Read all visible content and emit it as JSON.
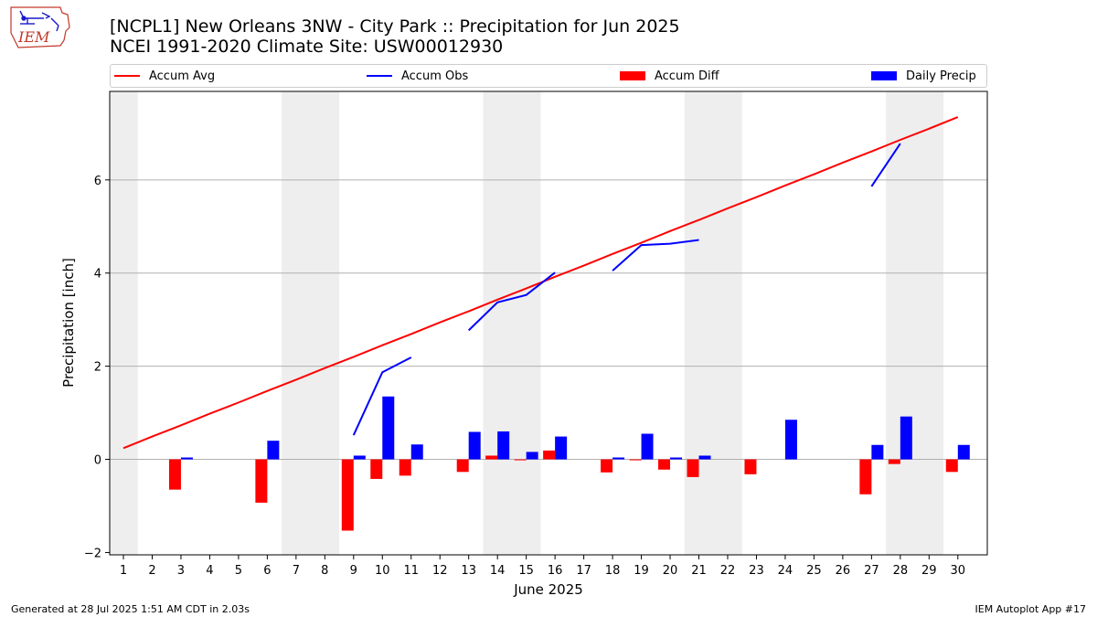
{
  "header": {
    "logo_text": "IEM",
    "title_line1": "[NCPL1] New Orleans 3NW - City Park :: Precipitation for Jun 2025",
    "title_line2": "NCEI 1991-2020 Climate Site: USW00012930"
  },
  "legend": {
    "accum_avg": "Accum Avg",
    "accum_obs": "Accum Obs",
    "accum_diff": "Accum Diff",
    "daily_precip": "Daily Precip"
  },
  "footer": {
    "generated": "Generated at 28 Jul 2025 1:51 AM CDT in 2.03s",
    "app": "IEM Autoplot App #17"
  },
  "colors": {
    "accum_avg": "#ff0000",
    "accum_obs": "#0000ff",
    "accum_diff": "#ff0000",
    "daily_precip": "#0000ff",
    "weekend_shade": "#eeeeee",
    "grid": "#b0b0b0"
  },
  "chart_data": {
    "type": "bar",
    "xlabel": "June 2025",
    "ylabel": "Precipitation [inch]",
    "ylim": [
      -2.05,
      7.9
    ],
    "yticks": [
      -2,
      0,
      2,
      4,
      6
    ],
    "grid": "horizontal",
    "legend_placement": "top",
    "days": [
      1,
      2,
      3,
      4,
      5,
      6,
      7,
      8,
      9,
      10,
      11,
      12,
      13,
      14,
      15,
      16,
      17,
      18,
      19,
      20,
      21,
      22,
      23,
      24,
      25,
      26,
      27,
      28,
      29,
      30
    ],
    "weekend_shading": [
      [
        1,
        1
      ],
      [
        7,
        8
      ],
      [
        14,
        15
      ],
      [
        21,
        22
      ],
      [
        28,
        29
      ]
    ],
    "series": [
      {
        "name": "Accum Avg",
        "kind": "line",
        "values": [
          0.24,
          0.49,
          0.73,
          0.98,
          1.22,
          1.47,
          1.71,
          1.96,
          2.2,
          2.45,
          2.69,
          2.94,
          3.18,
          3.43,
          3.67,
          3.92,
          4.16,
          4.41,
          4.65,
          4.9,
          5.14,
          5.39,
          5.63,
          5.88,
          6.12,
          6.37,
          6.61,
          6.86,
          7.1,
          7.35
        ]
      },
      {
        "name": "Accum Obs",
        "kind": "line",
        "values": [
          null,
          null,
          null,
          null,
          null,
          null,
          null,
          null,
          0.52,
          1.87,
          2.19,
          null,
          2.77,
          3.37,
          3.53,
          4.01,
          null,
          4.05,
          4.6,
          4.63,
          4.71,
          null,
          null,
          null,
          null,
          null,
          5.86,
          6.78,
          null,
          null
        ]
      },
      {
        "name": "Accum Diff",
        "kind": "bar",
        "values": [
          0,
          0,
          -0.65,
          0,
          0,
          -0.93,
          0,
          0,
          -1.53,
          -0.42,
          -0.35,
          0,
          -0.27,
          0.08,
          -0.02,
          0.19,
          0,
          -0.28,
          -0.02,
          -0.22,
          -0.38,
          0,
          -0.32,
          0,
          0,
          0,
          -0.75,
          -0.1,
          0,
          -0.27
        ]
      },
      {
        "name": "Daily Precip",
        "kind": "bar",
        "values": [
          0,
          0,
          0.04,
          0,
          0,
          0.4,
          0,
          0,
          0.08,
          1.35,
          0.32,
          0,
          0.59,
          0.6,
          0.16,
          0.49,
          0,
          0.04,
          0.55,
          0.04,
          0.08,
          0,
          0,
          0.85,
          0,
          0,
          0.31,
          0.92,
          0,
          0.31
        ]
      }
    ]
  }
}
